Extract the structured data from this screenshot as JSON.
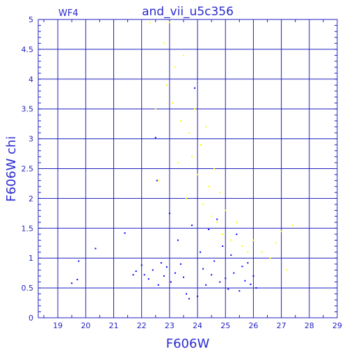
{
  "chart_data": {
    "type": "scatter",
    "title": "and_vii_u5c356",
    "corner_label": "WF4",
    "xlabel": "F606W",
    "ylabel": "F606W  chi",
    "xlim": [
      18.3,
      29
    ],
    "ylim": [
      0,
      5
    ],
    "grid": true,
    "x_ticks": [
      19,
      20,
      21,
      22,
      23,
      24,
      25,
      26,
      27,
      28,
      29
    ],
    "y_ticks": [
      0,
      0.5,
      1,
      1.5,
      2,
      2.5,
      3,
      3.5,
      4,
      4.5,
      5
    ],
    "x_tick_labels": [
      "19",
      "20",
      "21",
      "22",
      "23",
      "24",
      "25",
      "26",
      "27",
      "28",
      "29"
    ],
    "y_tick_labels": [
      "0",
      "0.5",
      "1",
      "1.5",
      "2",
      "2.5",
      "3",
      "3.5",
      "4",
      "4.5",
      "5"
    ],
    "series": [
      {
        "color": "#0000ff",
        "points": [
          [
            19.5,
            0.58
          ],
          [
            19.7,
            0.64
          ],
          [
            19.75,
            0.95
          ],
          [
            20.35,
            1.16
          ],
          [
            21.4,
            1.42
          ],
          [
            21.7,
            0.72
          ],
          [
            21.8,
            0.78
          ],
          [
            22.0,
            0.88
          ],
          [
            22.1,
            0.72
          ],
          [
            22.25,
            0.65
          ],
          [
            22.4,
            0.8
          ],
          [
            22.5,
            3.02
          ],
          [
            22.55,
            2.3
          ],
          [
            22.6,
            0.55
          ],
          [
            22.7,
            0.92
          ],
          [
            22.8,
            0.7
          ],
          [
            22.9,
            0.85
          ],
          [
            23.0,
            1.75
          ],
          [
            23.05,
            0.6
          ],
          [
            23.2,
            0.75
          ],
          [
            23.3,
            1.3
          ],
          [
            23.4,
            0.9
          ],
          [
            23.5,
            0.68
          ],
          [
            23.6,
            0.4
          ],
          [
            23.7,
            0.32
          ],
          [
            23.8,
            1.55
          ],
          [
            23.9,
            3.85
          ],
          [
            24.0,
            0.36
          ],
          [
            24.1,
            1.1
          ],
          [
            24.2,
            0.82
          ],
          [
            24.3,
            0.55
          ],
          [
            24.4,
            1.48
          ],
          [
            24.5,
            0.72
          ],
          [
            24.6,
            0.95
          ],
          [
            24.7,
            1.65
          ],
          [
            24.8,
            0.6
          ],
          [
            24.9,
            1.2
          ],
          [
            25.0,
            0.66
          ],
          [
            25.1,
            0.48
          ],
          [
            25.2,
            1.05
          ],
          [
            25.3,
            0.75
          ],
          [
            25.4,
            1.4
          ],
          [
            25.5,
            0.45
          ],
          [
            25.6,
            0.86
          ],
          [
            25.7,
            0.62
          ],
          [
            25.8,
            0.92
          ],
          [
            25.9,
            0.56
          ],
          [
            26.0,
            0.7
          ],
          [
            26.1,
            0.5
          ]
        ]
      },
      {
        "color": "#ffff00",
        "points": [
          [
            22.3,
            4.95
          ],
          [
            22.5,
            3.5
          ],
          [
            22.6,
            2.3
          ],
          [
            22.8,
            4.6
          ],
          [
            22.9,
            3.9
          ],
          [
            23.0,
            4.95
          ],
          [
            23.1,
            3.6
          ],
          [
            23.2,
            4.2
          ],
          [
            23.3,
            2.6
          ],
          [
            23.4,
            3.3
          ],
          [
            23.5,
            4.4
          ],
          [
            23.6,
            2.0
          ],
          [
            23.7,
            3.1
          ],
          [
            23.8,
            2.7
          ],
          [
            23.9,
            3.5
          ],
          [
            24.0,
            2.4
          ],
          [
            24.1,
            2.9
          ],
          [
            24.2,
            1.9
          ],
          [
            24.3,
            3.2
          ],
          [
            24.4,
            2.2
          ],
          [
            24.5,
            1.7
          ],
          [
            24.6,
            2.5
          ],
          [
            24.7,
            1.6
          ],
          [
            24.8,
            2.1
          ],
          [
            24.9,
            1.4
          ],
          [
            25.0,
            1.8
          ],
          [
            25.2,
            1.3
          ],
          [
            25.4,
            1.6
          ],
          [
            25.6,
            1.2
          ],
          [
            25.8,
            1.1
          ],
          [
            26.0,
            1.3
          ],
          [
            26.3,
            1.1
          ],
          [
            26.6,
            1.0
          ],
          [
            27.0,
            1.45
          ],
          [
            27.2,
            0.8
          ],
          [
            27.4,
            1.55
          ],
          [
            26.8,
            1.25
          ]
        ]
      }
    ]
  }
}
